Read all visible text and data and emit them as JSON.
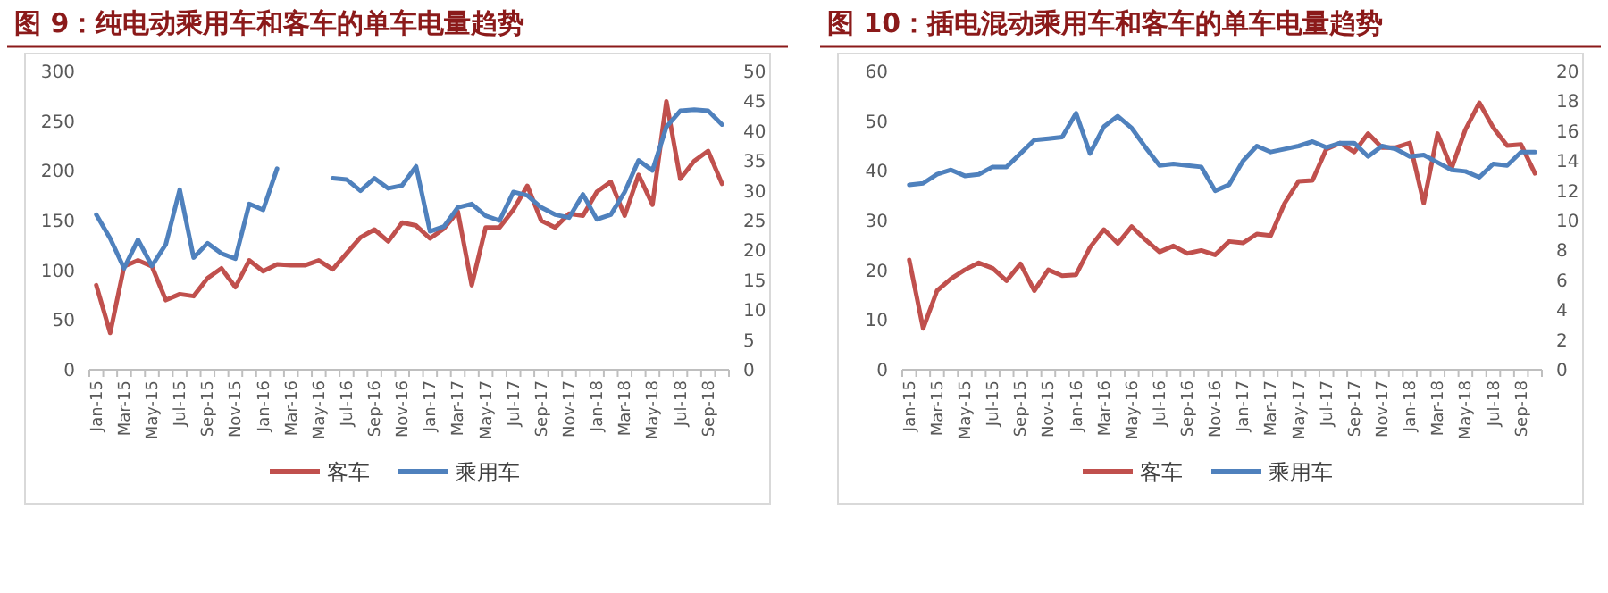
{
  "chart_data": [
    {
      "type": "line",
      "title": "图 9：纯电动乘用车和客车的单车电量趋势",
      "categories": [
        "Jan-15",
        null,
        "Mar-15",
        null,
        "May-15",
        null,
        "Jul-15",
        null,
        "Sep-15",
        null,
        "Nov-15",
        null,
        "Jan-16",
        null,
        "Mar-16",
        null,
        "May-16",
        null,
        "Jul-16",
        null,
        "Sep-16",
        null,
        "Nov-16",
        null,
        "Jan-17",
        null,
        "Mar-17",
        null,
        "May-17",
        null,
        "Jul-17",
        null,
        "Sep-17",
        null,
        "Nov-17",
        null,
        "Jan-18",
        null,
        "Mar-18",
        null,
        "May-18",
        null,
        "Jul-18",
        null,
        "Sep-18",
        null
      ],
      "ylim": [
        0,
        300
      ],
      "yticks": [
        0,
        50,
        100,
        150,
        200,
        250,
        300
      ],
      "y2lim": [
        0,
        50
      ],
      "y2ticks": [
        0,
        5,
        10,
        15,
        20,
        25,
        30,
        35,
        40,
        45,
        50
      ],
      "legend": "bottom",
      "series": [
        {
          "name": "客车",
          "color": "#c0504d",
          "values": [
            85,
            37,
            104,
            110,
            104,
            70,
            76,
            74,
            92,
            102,
            83,
            110,
            99,
            106,
            105,
            105,
            110,
            101,
            117,
            133,
            141,
            129,
            148,
            145,
            132,
            142,
            159,
            85,
            143,
            143,
            161,
            185,
            150,
            143,
            157,
            155,
            179,
            189,
            155,
            196,
            166,
            270,
            192,
            210,
            220,
            187
          ]
        },
        {
          "name": "乘用车",
          "color": "#4f81bd",
          "axis": "y2",
          "values": [
            26,
            22,
            17,
            21.8,
            17.4,
            21,
            30.2,
            18.8,
            21.2,
            19.5,
            18.6,
            27.8,
            26.8,
            33.7,
            null,
            null,
            null,
            32.1,
            31.9,
            30,
            32.1,
            30.4,
            30.9,
            34.1,
            23.2,
            24,
            27.2,
            27.8,
            25.8,
            25,
            29.8,
            29.2,
            27.2,
            26,
            25.5,
            29.4,
            25.2,
            26,
            29.8,
            35.1,
            33.4,
            40.7,
            43.4,
            43.6,
            43.4,
            41.1
          ]
        }
      ]
    },
    {
      "type": "line",
      "title": "图 10：插电混动乘用车和客车的单车电量趋势",
      "categories": [
        "Jan-15",
        null,
        "Mar-15",
        null,
        "May-15",
        null,
        "Jul-15",
        null,
        "Sep-15",
        null,
        "Nov-15",
        null,
        "Jan-16",
        null,
        "Mar-16",
        null,
        "May-16",
        null,
        "Jul-16",
        null,
        "Sep-16",
        null,
        "Nov-16",
        null,
        "Jan-17",
        null,
        "Mar-17",
        null,
        "May-17",
        null,
        "Jul-17",
        null,
        "Sep-17",
        null,
        "Nov-17",
        null,
        "Jan-18",
        null,
        "Mar-18",
        null,
        "May-18",
        null,
        "Jul-18",
        null,
        "Sep-18",
        null
      ],
      "ylim": [
        0,
        60
      ],
      "yticks": [
        0,
        10,
        20,
        30,
        40,
        50,
        60
      ],
      "y2lim": [
        0,
        20
      ],
      "y2ticks": [
        0,
        2,
        4,
        6,
        8,
        10,
        12,
        14,
        16,
        18,
        20
      ],
      "legend": "bottom",
      "series": [
        {
          "name": "客车",
          "color": "#c0504d",
          "values": [
            22.1,
            8.3,
            15.9,
            18.3,
            20.1,
            21.5,
            20.4,
            17.9,
            21.3,
            15.9,
            20.1,
            18.9,
            19.1,
            24.6,
            28.2,
            25.4,
            28.8,
            26.1,
            23.7,
            24.9,
            23.4,
            24,
            23.1,
            25.8,
            25.5,
            27.3,
            27,
            33.5,
            37.9,
            38.1,
            44.4,
            45.6,
            43.8,
            47.5,
            44.7,
            44.7,
            45.6,
            33.5,
            47.5,
            40.5,
            48.3,
            53.7,
            48.7,
            45.1,
            45.3,
            39.5
          ]
        },
        {
          "name": "乘用车",
          "color": "#4f81bd",
          "axis": "y2",
          "values": [
            12.4,
            12.5,
            13.1,
            13.4,
            13,
            13.1,
            13.6,
            13.6,
            14.5,
            15.4,
            15.5,
            15.6,
            17.2,
            14.5,
            16.3,
            17,
            16.2,
            14.9,
            13.7,
            13.8,
            13.7,
            13.6,
            12,
            12.4,
            14,
            15,
            14.6,
            14.8,
            15,
            15.3,
            14.9,
            15.2,
            15.2,
            14.3,
            15,
            14.8,
            14.3,
            14.4,
            13.9,
            13.4,
            13.3,
            12.9,
            13.8,
            13.7,
            14.6,
            14.6
          ]
        }
      ]
    }
  ]
}
